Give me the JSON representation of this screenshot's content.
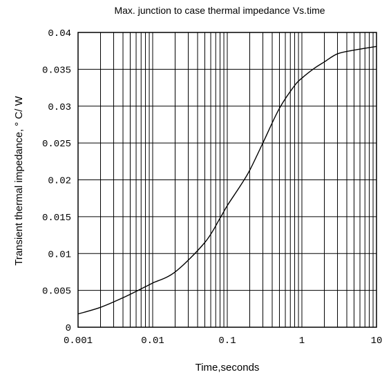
{
  "chart_data": {
    "type": "line",
    "title": "Max. junction to case thermal impedance Vs.time",
    "xlabel": "Time,seconds",
    "ylabel": "Transient thermal impedance, ° C/ W",
    "x_scale": "log",
    "xlim": [
      0.001,
      10
    ],
    "ylim": [
      0,
      0.04
    ],
    "grid": true,
    "x_ticks": [
      "0.001",
      "0.01",
      "0.1",
      "1",
      "10"
    ],
    "y_ticks": [
      "0",
      "0.005",
      "0.01",
      "0.015",
      "0.02",
      "0.025",
      "0.03",
      "0.035",
      "0.04"
    ],
    "series": [
      {
        "x": [
          0.001,
          0.002,
          0.004,
          0.008,
          0.01,
          0.02,
          0.05,
          0.08,
          0.1,
          0.15,
          0.2,
          0.3,
          0.5,
          0.8,
          1,
          1.5,
          2,
          3,
          5,
          10
        ],
        "y": [
          0.0018,
          0.0027,
          0.004,
          0.0055,
          0.006,
          0.0075,
          0.0115,
          0.0148,
          0.0165,
          0.0192,
          0.0213,
          0.025,
          0.0297,
          0.0328,
          0.0338,
          0.0352,
          0.036,
          0.0371,
          0.0376,
          0.0381
        ]
      }
    ]
  }
}
